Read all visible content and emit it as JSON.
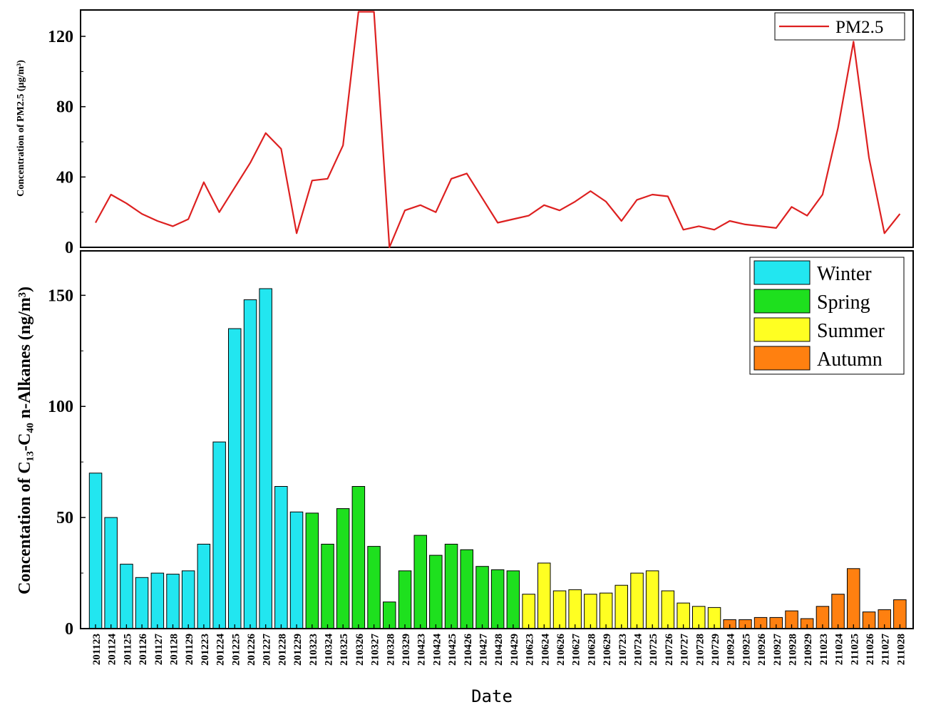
{
  "chart_data": [
    {
      "type": "line",
      "ylabel": "Concentration of PM2.5 (μg/m³)",
      "ylim": [
        0,
        135
      ],
      "yticks": [
        "0",
        "40",
        "80",
        "120"
      ],
      "legend": {
        "position": "top-right",
        "entries": [
          "PM2.5"
        ]
      },
      "colors": {
        "PM2.5": "#dd2020"
      },
      "series": [
        {
          "name": "PM2.5",
          "values": [
            14,
            30,
            25,
            19,
            15,
            12,
            16,
            37,
            20,
            34,
            48,
            65,
            56,
            8,
            38,
            39,
            58,
            134,
            134,
            0,
            21,
            24,
            20,
            39,
            42,
            28,
            14,
            16,
            18,
            24,
            21,
            26,
            32,
            26,
            15,
            27,
            30,
            29,
            10,
            12,
            10,
            15,
            13,
            12,
            11,
            23,
            18,
            30,
            68,
            117,
            51,
            8,
            19
          ]
        }
      ]
    },
    {
      "type": "bar",
      "xlabel": "Date",
      "ylabel": "Concentation of C₁₃-C₄₀ n-Alkanes (ng/m³)",
      "ylim": [
        0,
        170
      ],
      "yticks": [
        "0",
        "50",
        "100",
        "150"
      ],
      "categories": [
        "201123",
        "201124",
        "201125",
        "201126",
        "201127",
        "201128",
        "201129",
        "201223",
        "201224",
        "201225",
        "201226",
        "201227",
        "201228",
        "201229",
        "210323",
        "210324",
        "210325",
        "210326",
        "210327",
        "210328",
        "210329",
        "210423",
        "210424",
        "210425",
        "210426",
        "210427",
        "210428",
        "210429",
        "210623",
        "210624",
        "210626",
        "210627",
        "210628",
        "210629",
        "210723",
        "210724",
        "210725",
        "210726",
        "210727",
        "210728",
        "210729",
        "210924",
        "210925",
        "210926",
        "210927",
        "210928",
        "210929",
        "211023",
        "211024",
        "211025",
        "211026",
        "211027",
        "211028"
      ],
      "values": [
        70,
        50,
        29,
        23,
        25,
        24.5,
        26,
        38,
        84,
        135,
        148,
        153,
        64,
        52.5,
        52,
        38,
        54,
        64,
        37,
        12,
        26,
        42,
        33,
        38,
        35.5,
        28,
        26.5,
        26,
        15.5,
        29.5,
        17,
        17.5,
        15.5,
        16,
        19.5,
        25,
        26,
        17,
        11.5,
        10,
        9.5,
        4,
        4,
        5,
        5,
        8,
        4.5,
        10,
        15.5,
        27,
        7.5,
        8.5,
        13
      ],
      "seasons": [
        "Winter",
        "Winter",
        "Winter",
        "Winter",
        "Winter",
        "Winter",
        "Winter",
        "Winter",
        "Winter",
        "Winter",
        "Winter",
        "Winter",
        "Winter",
        "Winter",
        "Spring",
        "Spring",
        "Spring",
        "Spring",
        "Spring",
        "Spring",
        "Spring",
        "Spring",
        "Spring",
        "Spring",
        "Spring",
        "Spring",
        "Spring",
        "Spring",
        "Summer",
        "Summer",
        "Summer",
        "Summer",
        "Summer",
        "Summer",
        "Summer",
        "Summer",
        "Summer",
        "Summer",
        "Summer",
        "Summer",
        "Summer",
        "Autumn",
        "Autumn",
        "Autumn",
        "Autumn",
        "Autumn",
        "Autumn",
        "Autumn",
        "Autumn",
        "Autumn",
        "Autumn",
        "Autumn",
        "Autumn"
      ],
      "legend": {
        "position": "top-right",
        "entries": [
          "Winter",
          "Spring",
          "Summer",
          "Autumn"
        ]
      },
      "colors": {
        "Winter": "#22e6f0",
        "Spring": "#1ee01e",
        "Summer": "#ffff22",
        "Autumn": "#ff8010"
      }
    }
  ]
}
